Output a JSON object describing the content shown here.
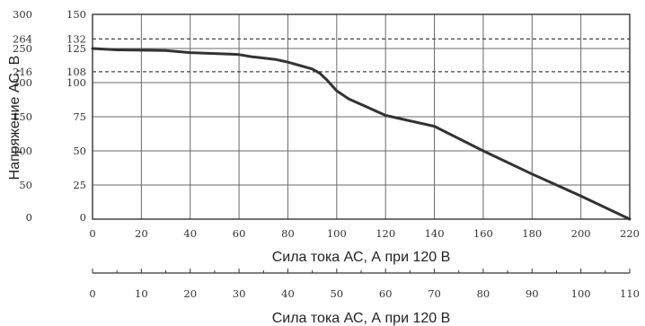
{
  "chart_data": {
    "type": "line",
    "ylabel": "Напряжение АС, В",
    "xlabel": "Сила тока АС, А при 120 В",
    "xlabel_secondary": "Сила тока АС, А при 120 В",
    "xlim": [
      0,
      220
    ],
    "ylim": [
      0,
      150
    ],
    "grid": true,
    "x_ticks": [
      "0",
      "20",
      "40",
      "60",
      "80",
      "100",
      "120",
      "140",
      "160",
      "180",
      "200",
      "220"
    ],
    "x_ticks_values": [
      0,
      20,
      40,
      60,
      80,
      100,
      120,
      140,
      160,
      180,
      200,
      220
    ],
    "x2_ticks": [
      "0",
      "10",
      "20",
      "30",
      "40",
      "50",
      "60",
      "70",
      "80",
      "90",
      "100",
      "110"
    ],
    "x2_ticks_values": [
      0,
      10,
      20,
      30,
      40,
      50,
      60,
      70,
      80,
      90,
      100,
      110
    ],
    "y_ticks_inner": [
      "0",
      "25",
      "50",
      "75",
      "100",
      "108",
      "125",
      "132",
      "150"
    ],
    "y_ticks_outer": [
      "0",
      "50",
      "100",
      "150",
      "200",
      "216",
      "250",
      "264",
      "300"
    ],
    "y_ticks_values": [
      0,
      25,
      50,
      75,
      100,
      108,
      125,
      132,
      150
    ],
    "dashed_levels": [
      108,
      132
    ],
    "series": [
      {
        "x": [
          0,
          10,
          30,
          40,
          55,
          60,
          65,
          70,
          75,
          80,
          85,
          90,
          93,
          96,
          100,
          105,
          110,
          115,
          120,
          140,
          160,
          180,
          200,
          220
        ],
        "y": [
          125,
          124,
          123.5,
          122,
          121,
          120.5,
          119,
          118,
          117,
          115,
          112.5,
          110,
          107,
          102,
          94,
          88,
          84,
          80,
          76,
          68,
          50,
          33,
          17,
          0
        ]
      }
    ]
  }
}
